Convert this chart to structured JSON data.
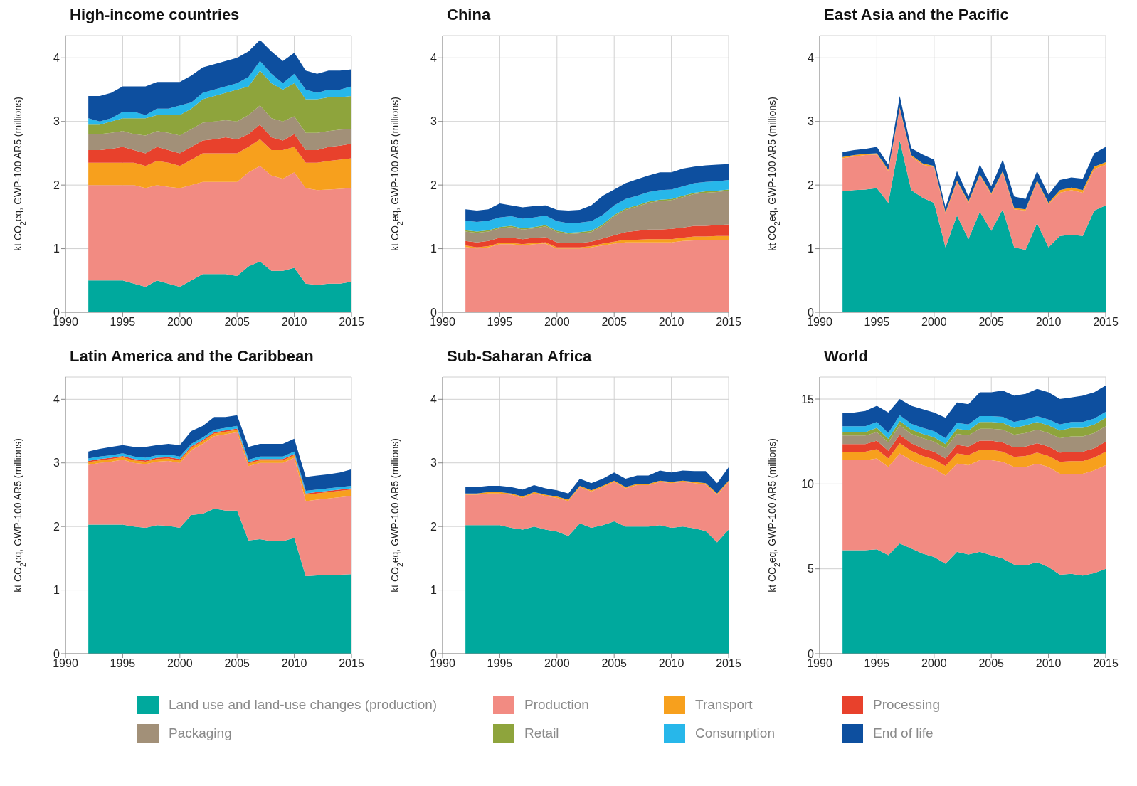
{
  "chart_data": [
    {
      "type": "area",
      "title": "High-income countries",
      "ylabel": "kt CO$_{2}$eq, GWP-100 AR5 (millions)",
      "stacked": true,
      "grid": true,
      "legend": "bottom",
      "x": [
        1992,
        1993,
        1994,
        1995,
        1996,
        1997,
        1998,
        1999,
        2000,
        2001,
        2002,
        2003,
        2004,
        2005,
        2006,
        2007,
        2008,
        2009,
        2010,
        2011,
        2012,
        2013,
        2014,
        2015
      ],
      "xlim": [
        1990,
        2015
      ],
      "xticks": [
        1990,
        1995,
        2000,
        2005,
        2010,
        2015
      ],
      "ylim": [
        0,
        4.35
      ],
      "yticks": [
        0,
        1,
        2,
        3,
        4
      ],
      "series": [
        {
          "name": "Land use and land-use changes (production)",
          "color": "#00a99d",
          "values": [
            0.5,
            0.5,
            0.5,
            0.5,
            0.45,
            0.4,
            0.5,
            0.45,
            0.4,
            0.5,
            0.6,
            0.6,
            0.6,
            0.57,
            0.72,
            0.8,
            0.65,
            0.65,
            0.7,
            0.45,
            0.43,
            0.45,
            0.45,
            0.48
          ]
        },
        {
          "name": "Production",
          "color": "#f28b82",
          "values": [
            1.5,
            1.5,
            1.5,
            1.5,
            1.55,
            1.55,
            1.5,
            1.52,
            1.55,
            1.5,
            1.45,
            1.45,
            1.45,
            1.48,
            1.48,
            1.5,
            1.5,
            1.45,
            1.5,
            1.5,
            1.49,
            1.48,
            1.49,
            1.47
          ]
        },
        {
          "name": "Transport",
          "color": "#f7a01d",
          "values": [
            0.35,
            0.35,
            0.35,
            0.35,
            0.35,
            0.35,
            0.38,
            0.38,
            0.35,
            0.4,
            0.45,
            0.45,
            0.45,
            0.45,
            0.4,
            0.42,
            0.4,
            0.45,
            0.4,
            0.4,
            0.43,
            0.45,
            0.46,
            0.47
          ]
        },
        {
          "name": "Processing",
          "color": "#e8412c",
          "values": [
            0.2,
            0.2,
            0.22,
            0.25,
            0.2,
            0.2,
            0.22,
            0.2,
            0.2,
            0.2,
            0.2,
            0.22,
            0.25,
            0.22,
            0.2,
            0.23,
            0.2,
            0.15,
            0.2,
            0.2,
            0.2,
            0.22,
            0.22,
            0.23
          ]
        },
        {
          "name": "Packaging",
          "color": "#a29078",
          "values": [
            0.25,
            0.25,
            0.25,
            0.25,
            0.25,
            0.28,
            0.25,
            0.27,
            0.28,
            0.28,
            0.28,
            0.28,
            0.27,
            0.28,
            0.3,
            0.3,
            0.3,
            0.3,
            0.28,
            0.27,
            0.27,
            0.25,
            0.25,
            0.23
          ]
        },
        {
          "name": "Retail",
          "color": "#8ea43c",
          "values": [
            0.15,
            0.15,
            0.18,
            0.2,
            0.25,
            0.27,
            0.25,
            0.28,
            0.32,
            0.32,
            0.37,
            0.4,
            0.43,
            0.5,
            0.45,
            0.55,
            0.55,
            0.5,
            0.52,
            0.53,
            0.53,
            0.53,
            0.51,
            0.52
          ]
        },
        {
          "name": "Consumption",
          "color": "#27b7ea",
          "values": [
            0.1,
            0.05,
            0.05,
            0.1,
            0.1,
            0.05,
            0.1,
            0.1,
            0.15,
            0.1,
            0.1,
            0.1,
            0.1,
            0.1,
            0.15,
            0.15,
            0.15,
            0.1,
            0.15,
            0.15,
            0.1,
            0.12,
            0.12,
            0.15
          ]
        },
        {
          "name": "End of life",
          "color": "#0d4f9f",
          "values": [
            0.35,
            0.4,
            0.4,
            0.4,
            0.4,
            0.45,
            0.42,
            0.42,
            0.37,
            0.42,
            0.4,
            0.4,
            0.4,
            0.4,
            0.4,
            0.33,
            0.35,
            0.35,
            0.33,
            0.3,
            0.3,
            0.3,
            0.3,
            0.27
          ]
        }
      ]
    },
    {
      "type": "area",
      "title": "China",
      "ylabel": "kt CO$_{2}$eq, GWP-100 AR5 (millions)",
      "stacked": true,
      "grid": true,
      "legend": "bottom",
      "x": [
        1992,
        1993,
        1994,
        1995,
        1996,
        1997,
        1998,
        1999,
        2000,
        2001,
        2002,
        2003,
        2004,
        2005,
        2006,
        2007,
        2008,
        2009,
        2010,
        2011,
        2012,
        2013,
        2014,
        2015
      ],
      "xlim": [
        1990,
        2015
      ],
      "xticks": [
        1990,
        1995,
        2000,
        2005,
        2010,
        2015
      ],
      "ylim": [
        0,
        4.35
      ],
      "yticks": [
        0,
        1,
        2,
        3,
        4
      ],
      "series": [
        {
          "name": "Production",
          "color": "#f28b82",
          "values": [
            1.03,
            1.0,
            1.02,
            1.07,
            1.07,
            1.05,
            1.07,
            1.08,
            1.0,
            1.0,
            1.0,
            1.02,
            1.05,
            1.08,
            1.1,
            1.1,
            1.1,
            1.1,
            1.1,
            1.12,
            1.13,
            1.13,
            1.13,
            1.13
          ]
        },
        {
          "name": "Transport",
          "color": "#f7a01d",
          "values": [
            0.02,
            0.02,
            0.02,
            0.02,
            0.02,
            0.02,
            0.02,
            0.02,
            0.02,
            0.02,
            0.02,
            0.02,
            0.03,
            0.03,
            0.04,
            0.04,
            0.05,
            0.05,
            0.05,
            0.05,
            0.06,
            0.06,
            0.07,
            0.07
          ]
        },
        {
          "name": "Processing",
          "color": "#e8412c",
          "values": [
            0.07,
            0.08,
            0.08,
            0.08,
            0.08,
            0.08,
            0.08,
            0.08,
            0.08,
            0.07,
            0.07,
            0.07,
            0.08,
            0.1,
            0.12,
            0.14,
            0.15,
            0.15,
            0.16,
            0.16,
            0.17,
            0.17,
            0.17,
            0.18
          ]
        },
        {
          "name": "Packaging",
          "color": "#a29078",
          "values": [
            0.15,
            0.15,
            0.15,
            0.15,
            0.17,
            0.15,
            0.15,
            0.17,
            0.16,
            0.14,
            0.15,
            0.15,
            0.2,
            0.3,
            0.35,
            0.38,
            0.42,
            0.45,
            0.45,
            0.48,
            0.5,
            0.52,
            0.52,
            0.53
          ]
        },
        {
          "name": "Retail",
          "color": "#8ea43c",
          "values": [
            0.02,
            0.02,
            0.02,
            0.02,
            0.02,
            0.02,
            0.02,
            0.02,
            0.02,
            0.02,
            0.02,
            0.02,
            0.02,
            0.02,
            0.02,
            0.02,
            0.02,
            0.02,
            0.02,
            0.02,
            0.02,
            0.02,
            0.02,
            0.02
          ]
        },
        {
          "name": "Consumption",
          "color": "#27b7ea",
          "values": [
            0.15,
            0.15,
            0.15,
            0.15,
            0.15,
            0.15,
            0.15,
            0.15,
            0.15,
            0.15,
            0.15,
            0.15,
            0.15,
            0.15,
            0.15,
            0.15,
            0.15,
            0.15,
            0.15,
            0.15,
            0.15,
            0.15,
            0.15,
            0.15
          ]
        },
        {
          "name": "End of life",
          "color": "#0d4f9f",
          "values": [
            0.18,
            0.18,
            0.18,
            0.22,
            0.17,
            0.18,
            0.18,
            0.16,
            0.18,
            0.2,
            0.2,
            0.25,
            0.3,
            0.25,
            0.25,
            0.26,
            0.26,
            0.28,
            0.27,
            0.28,
            0.26,
            0.26,
            0.26,
            0.25
          ]
        }
      ]
    },
    {
      "type": "area",
      "title": "East Asia and the Pacific",
      "ylabel": "kt CO$_{2}$eq, GWP-100 AR5 (millions)",
      "stacked": true,
      "grid": true,
      "legend": "bottom",
      "x": [
        1992,
        1993,
        1994,
        1995,
        1996,
        1997,
        1998,
        1999,
        2000,
        2001,
        2002,
        2003,
        2004,
        2005,
        2006,
        2007,
        2008,
        2009,
        2010,
        2011,
        2012,
        2013,
        2014,
        2015
      ],
      "xlim": [
        1990,
        2015
      ],
      "xticks": [
        1990,
        1995,
        2000,
        2005,
        2010,
        2015
      ],
      "ylim": [
        0,
        4.35
      ],
      "yticks": [
        0,
        1,
        2,
        3,
        4
      ],
      "series": [
        {
          "name": "Land use and land-use changes (production)",
          "color": "#00a99d",
          "values": [
            1.9,
            1.92,
            1.93,
            1.95,
            1.72,
            2.7,
            1.92,
            1.8,
            1.72,
            1.02,
            1.52,
            1.15,
            1.58,
            1.28,
            1.62,
            1.02,
            0.98,
            1.4,
            1.02,
            1.2,
            1.22,
            1.2,
            1.6,
            1.68
          ]
        },
        {
          "name": "Production",
          "color": "#f28b82",
          "values": [
            0.52,
            0.53,
            0.54,
            0.53,
            0.5,
            0.5,
            0.53,
            0.52,
            0.56,
            0.53,
            0.53,
            0.57,
            0.57,
            0.57,
            0.58,
            0.6,
            0.62,
            0.65,
            0.68,
            0.68,
            0.7,
            0.68,
            0.65,
            0.64
          ]
        },
        {
          "name": "Transport",
          "color": "#f7a01d",
          "values": [
            0.02,
            0.02,
            0.02,
            0.02,
            0.02,
            0.02,
            0.02,
            0.02,
            0.02,
            0.02,
            0.02,
            0.02,
            0.02,
            0.02,
            0.02,
            0.02,
            0.02,
            0.02,
            0.02,
            0.04,
            0.04,
            0.04,
            0.04,
            0.04
          ]
        },
        {
          "name": "End of life",
          "color": "#0d4f9f",
          "values": [
            0.08,
            0.08,
            0.08,
            0.1,
            0.08,
            0.18,
            0.11,
            0.14,
            0.1,
            0.08,
            0.15,
            0.08,
            0.15,
            0.11,
            0.18,
            0.18,
            0.16,
            0.15,
            0.13,
            0.16,
            0.16,
            0.18,
            0.21,
            0.24
          ]
        }
      ]
    },
    {
      "type": "area",
      "title": "Latin America and the Caribbean",
      "ylabel": "kt CO$_{2}$eq, GWP-100 AR5 (millions)",
      "stacked": true,
      "grid": true,
      "legend": "bottom",
      "x": [
        1992,
        1993,
        1994,
        1995,
        1996,
        1997,
        1998,
        1999,
        2000,
        2001,
        2002,
        2003,
        2004,
        2005,
        2006,
        2007,
        2008,
        2009,
        2010,
        2011,
        2012,
        2013,
        2014,
        2015
      ],
      "xlim": [
        1990,
        2015
      ],
      "xticks": [
        1990,
        1995,
        2000,
        2005,
        2010,
        2015
      ],
      "ylim": [
        0,
        4.35
      ],
      "yticks": [
        0,
        1,
        2,
        3,
        4
      ],
      "series": [
        {
          "name": "Land use and land-use changes (production)",
          "color": "#00a99d",
          "values": [
            2.03,
            2.03,
            2.03,
            2.03,
            2.0,
            1.98,
            2.02,
            2.01,
            1.98,
            2.18,
            2.2,
            2.28,
            2.25,
            2.25,
            1.78,
            1.8,
            1.77,
            1.77,
            1.82,
            1.22,
            1.23,
            1.24,
            1.24,
            1.25
          ]
        },
        {
          "name": "Production",
          "color": "#f28b82",
          "values": [
            0.94,
            0.97,
            0.99,
            1.02,
            1.0,
            1.0,
            1.0,
            1.02,
            1.02,
            1.02,
            1.1,
            1.14,
            1.2,
            1.23,
            1.17,
            1.2,
            1.23,
            1.23,
            1.26,
            1.18,
            1.19,
            1.2,
            1.22,
            1.23
          ]
        },
        {
          "name": "Transport",
          "color": "#f7a01d",
          "values": [
            0.04,
            0.04,
            0.04,
            0.04,
            0.04,
            0.04,
            0.04,
            0.04,
            0.04,
            0.04,
            0.04,
            0.04,
            0.04,
            0.04,
            0.04,
            0.04,
            0.04,
            0.04,
            0.04,
            0.1,
            0.1,
            0.1,
            0.1,
            0.1
          ]
        },
        {
          "name": "Processing",
          "color": "#e8412c",
          "values": [
            0.02,
            0.02,
            0.02,
            0.02,
            0.02,
            0.02,
            0.02,
            0.02,
            0.02,
            0.02,
            0.02,
            0.02,
            0.02,
            0.02,
            0.02,
            0.02,
            0.02,
            0.02,
            0.02,
            0.02,
            0.02,
            0.02,
            0.02,
            0.02
          ]
        },
        {
          "name": "Consumption",
          "color": "#27b7ea",
          "values": [
            0.04,
            0.04,
            0.04,
            0.04,
            0.04,
            0.04,
            0.04,
            0.04,
            0.04,
            0.04,
            0.04,
            0.04,
            0.04,
            0.04,
            0.04,
            0.04,
            0.04,
            0.04,
            0.04,
            0.04,
            0.04,
            0.04,
            0.04,
            0.04
          ]
        },
        {
          "name": "End of life",
          "color": "#0d4f9f",
          "values": [
            0.11,
            0.12,
            0.13,
            0.13,
            0.15,
            0.17,
            0.16,
            0.17,
            0.18,
            0.2,
            0.18,
            0.2,
            0.17,
            0.17,
            0.2,
            0.2,
            0.2,
            0.2,
            0.2,
            0.22,
            0.22,
            0.22,
            0.23,
            0.26
          ]
        }
      ]
    },
    {
      "type": "area",
      "title": "Sub-Saharan Africa",
      "ylabel": "kt CO$_{2}$eq, GWP-100 AR5 (millions)",
      "stacked": true,
      "grid": true,
      "legend": "bottom",
      "x": [
        1992,
        1993,
        1994,
        1995,
        1996,
        1997,
        1998,
        1999,
        2000,
        2001,
        2002,
        2003,
        2004,
        2005,
        2006,
        2007,
        2008,
        2009,
        2010,
        2011,
        2012,
        2013,
        2014,
        2015
      ],
      "xlim": [
        1990,
        2015
      ],
      "xticks": [
        1990,
        1995,
        2000,
        2005,
        2010,
        2015
      ],
      "ylim": [
        0,
        4.35
      ],
      "yticks": [
        0,
        1,
        2,
        3,
        4
      ],
      "series": [
        {
          "name": "Land use and land-use changes (production)",
          "color": "#00a99d",
          "values": [
            2.02,
            2.02,
            2.02,
            2.02,
            1.98,
            1.95,
            2.0,
            1.95,
            1.92,
            1.85,
            2.05,
            1.98,
            2.02,
            2.08,
            2.0,
            2.0,
            2.0,
            2.02,
            1.98,
            2.0,
            1.97,
            1.93,
            1.75,
            1.95
          ]
        },
        {
          "name": "Production",
          "color": "#f28b82",
          "values": [
            0.48,
            0.48,
            0.5,
            0.5,
            0.52,
            0.5,
            0.52,
            0.53,
            0.53,
            0.55,
            0.57,
            0.57,
            0.6,
            0.62,
            0.6,
            0.65,
            0.65,
            0.68,
            0.7,
            0.7,
            0.71,
            0.73,
            0.75,
            0.75
          ]
        },
        {
          "name": "Transport",
          "color": "#f7a01d",
          "values": [
            0.02,
            0.02,
            0.02,
            0.02,
            0.02,
            0.02,
            0.02,
            0.02,
            0.02,
            0.02,
            0.02,
            0.02,
            0.02,
            0.02,
            0.02,
            0.02,
            0.02,
            0.02,
            0.02,
            0.02,
            0.02,
            0.02,
            0.02,
            0.02
          ]
        },
        {
          "name": "End of life",
          "color": "#0d4f9f",
          "values": [
            0.1,
            0.1,
            0.1,
            0.1,
            0.1,
            0.11,
            0.11,
            0.1,
            0.1,
            0.1,
            0.11,
            0.11,
            0.11,
            0.13,
            0.13,
            0.13,
            0.13,
            0.16,
            0.15,
            0.16,
            0.17,
            0.19,
            0.16,
            0.21
          ]
        }
      ]
    },
    {
      "type": "area",
      "title": "World",
      "ylabel": "kt CO$_{2}$eq, GWP-100 AR5 (millions)",
      "stacked": true,
      "grid": true,
      "legend": "bottom",
      "x": [
        1992,
        1993,
        1994,
        1995,
        1996,
        1997,
        1998,
        1999,
        2000,
        2001,
        2002,
        2003,
        2004,
        2005,
        2006,
        2007,
        2008,
        2009,
        2010,
        2011,
        2012,
        2013,
        2014,
        2015
      ],
      "xlim": [
        1990,
        2015
      ],
      "xticks": [
        1990,
        1995,
        2000,
        2005,
        2010,
        2015
      ],
      "ylim": [
        0,
        16.3
      ],
      "yticks": [
        0,
        5,
        10,
        15
      ],
      "series": [
        {
          "name": "Land use and land-use changes (production)",
          "color": "#00a99d",
          "values": [
            6.1,
            6.1,
            6.1,
            6.15,
            5.8,
            6.5,
            6.2,
            5.9,
            5.7,
            5.3,
            6.0,
            5.85,
            6.0,
            5.8,
            5.6,
            5.25,
            5.2,
            5.4,
            5.1,
            4.65,
            4.7,
            4.6,
            4.75,
            5.0
          ]
        },
        {
          "name": "Production",
          "color": "#f28b82",
          "values": [
            5.3,
            5.3,
            5.3,
            5.35,
            5.2,
            5.3,
            5.2,
            5.2,
            5.2,
            5.2,
            5.2,
            5.25,
            5.4,
            5.6,
            5.7,
            5.75,
            5.8,
            5.8,
            5.9,
            5.95,
            5.9,
            6.0,
            6.05,
            6.1
          ]
        },
        {
          "name": "Transport",
          "color": "#f7a01d",
          "values": [
            0.5,
            0.5,
            0.5,
            0.55,
            0.5,
            0.6,
            0.55,
            0.55,
            0.55,
            0.55,
            0.6,
            0.6,
            0.6,
            0.6,
            0.6,
            0.6,
            0.65,
            0.65,
            0.65,
            0.7,
            0.75,
            0.75,
            0.75,
            0.8
          ]
        },
        {
          "name": "Processing",
          "color": "#e8412c",
          "values": [
            0.45,
            0.45,
            0.45,
            0.5,
            0.45,
            0.5,
            0.45,
            0.45,
            0.45,
            0.45,
            0.5,
            0.5,
            0.55,
            0.55,
            0.55,
            0.55,
            0.55,
            0.55,
            0.55,
            0.55,
            0.55,
            0.55,
            0.55,
            0.6
          ]
        },
        {
          "name": "Packaging",
          "color": "#a29078",
          "values": [
            0.5,
            0.5,
            0.5,
            0.5,
            0.5,
            0.55,
            0.55,
            0.6,
            0.6,
            0.6,
            0.65,
            0.65,
            0.7,
            0.7,
            0.75,
            0.75,
            0.8,
            0.8,
            0.8,
            0.85,
            0.9,
            0.9,
            0.9,
            0.9
          ]
        },
        {
          "name": "Retail",
          "color": "#8ea43c",
          "values": [
            0.2,
            0.2,
            0.2,
            0.25,
            0.2,
            0.25,
            0.25,
            0.25,
            0.25,
            0.25,
            0.3,
            0.3,
            0.4,
            0.4,
            0.4,
            0.4,
            0.45,
            0.45,
            0.45,
            0.45,
            0.5,
            0.5,
            0.5,
            0.5
          ]
        },
        {
          "name": "Consumption",
          "color": "#27b7ea",
          "values": [
            0.35,
            0.35,
            0.35,
            0.35,
            0.35,
            0.35,
            0.35,
            0.35,
            0.35,
            0.35,
            0.35,
            0.35,
            0.35,
            0.35,
            0.35,
            0.35,
            0.35,
            0.35,
            0.35,
            0.35,
            0.35,
            0.35,
            0.35,
            0.35
          ]
        },
        {
          "name": "End of life",
          "color": "#0d4f9f",
          "values": [
            0.8,
            0.8,
            0.9,
            0.95,
            1.2,
            0.95,
            1.05,
            1.1,
            1.1,
            1.2,
            1.2,
            1.2,
            1.4,
            1.4,
            1.55,
            1.55,
            1.5,
            1.6,
            1.6,
            1.5,
            1.45,
            1.55,
            1.55,
            1.55
          ]
        }
      ]
    }
  ]
}
